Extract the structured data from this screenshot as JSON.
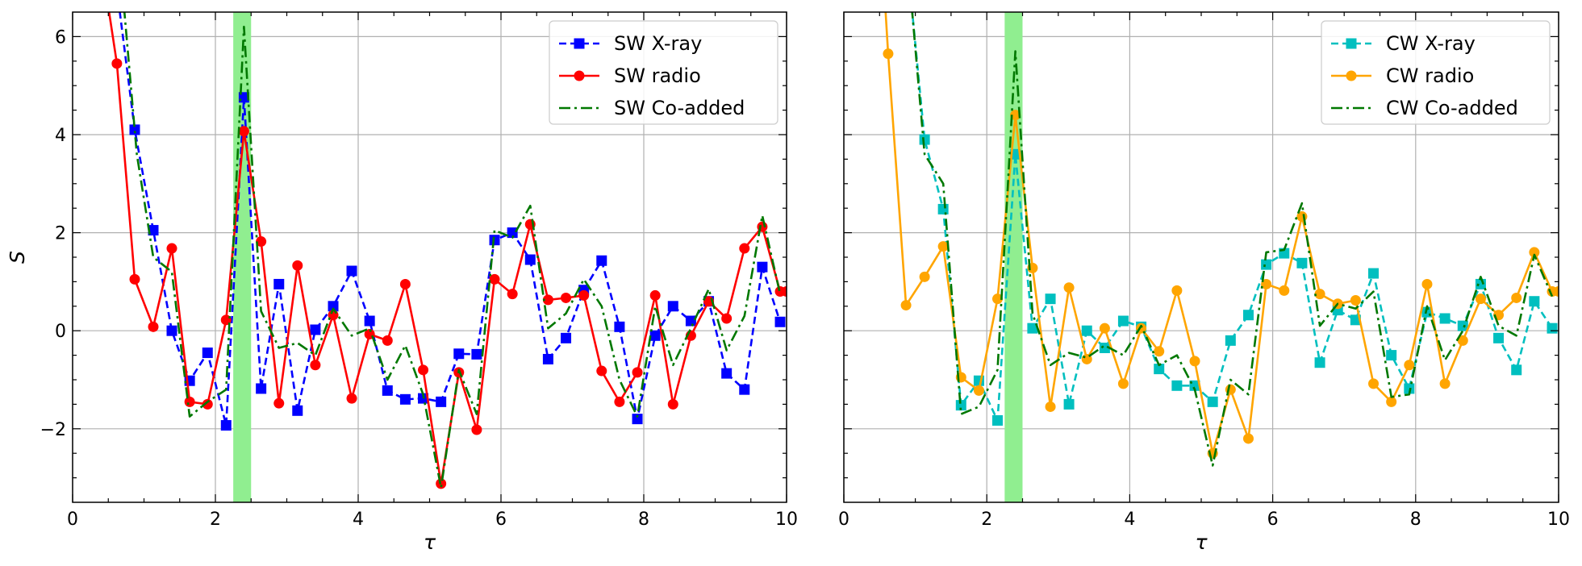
{
  "chart_data": [
    {
      "type": "line",
      "panel": "left",
      "xlabel": "τ",
      "ylabel": "S",
      "xlim": [
        0,
        10
      ],
      "ylim": [
        -3.5,
        6.5
      ],
      "xticks": [
        0,
        2,
        4,
        6,
        8,
        10
      ],
      "yticks": [
        -2,
        0,
        2,
        4,
        6
      ],
      "xtick_labels": [
        "0",
        "2",
        "4",
        "6",
        "8",
        "10"
      ],
      "ytick_labels": [
        "−2",
        "0",
        "2",
        "4",
        "6"
      ],
      "grid": true,
      "legend_position": "top-right",
      "highlight_band": {
        "x0": 2.25,
        "x1": 2.5,
        "color": "#90ee90"
      },
      "series": [
        {
          "name": "SW X-ray",
          "color": "#0000ff",
          "style": "dashed",
          "marker": "square",
          "x": [
            0.6,
            0.87,
            1.13,
            1.39,
            1.64,
            1.89,
            2.15,
            2.4,
            2.64,
            2.89,
            3.15,
            3.4,
            3.65,
            3.91,
            4.16,
            4.41,
            4.66,
            4.91,
            5.16,
            5.41,
            5.66,
            5.91,
            6.16,
            6.41,
            6.66,
            6.91,
            7.16,
            7.41,
            7.66,
            7.91,
            8.16,
            8.41,
            8.66,
            8.91,
            9.16,
            9.41,
            9.66,
            9.91
          ],
          "y": [
            7.2,
            4.1,
            2.05,
            0.0,
            -1.02,
            -0.45,
            -1.93,
            4.76,
            -1.18,
            0.95,
            -1.63,
            0.02,
            0.5,
            1.22,
            0.2,
            -1.22,
            -1.4,
            -1.38,
            -1.45,
            -0.47,
            -0.48,
            1.85,
            2.0,
            1.45,
            -0.58,
            -0.15,
            0.83,
            1.43,
            0.08,
            -1.8,
            -0.1,
            0.5,
            0.2,
            0.6,
            -0.87,
            -1.2,
            1.3,
            0.18
          ]
        },
        {
          "name": "SW radio",
          "color": "#ff0000",
          "style": "solid",
          "marker": "circle",
          "x": [
            0.5,
            0.62,
            0.87,
            1.13,
            1.39,
            1.64,
            1.89,
            2.15,
            2.4,
            2.64,
            2.89,
            3.15,
            3.4,
            3.65,
            3.91,
            4.16,
            4.41,
            4.66,
            4.91,
            5.16,
            5.41,
            5.66,
            5.91,
            6.16,
            6.41,
            6.66,
            6.91,
            7.16,
            7.41,
            7.66,
            7.91,
            8.16,
            8.41,
            8.66,
            8.91,
            9.16,
            9.41,
            9.66,
            9.91,
            10.0
          ],
          "y": [
            6.6,
            5.45,
            1.05,
            0.08,
            1.68,
            -1.45,
            -1.5,
            0.22,
            4.07,
            1.82,
            -1.48,
            1.33,
            -0.7,
            0.32,
            -1.38,
            -0.07,
            -0.2,
            0.95,
            -0.8,
            -3.12,
            -0.85,
            -2.02,
            1.05,
            0.75,
            2.17,
            0.63,
            0.67,
            0.72,
            -0.82,
            -1.45,
            -0.85,
            0.72,
            -1.5,
            -0.1,
            0.6,
            0.25,
            1.68,
            2.12,
            0.8,
            0.8
          ]
        },
        {
          "name": "SW Co-added",
          "color": "#007800",
          "style": "dashdot",
          "marker": "none",
          "x": [
            0.72,
            0.9,
            1.13,
            1.39,
            1.64,
            1.89,
            2.15,
            2.4,
            2.64,
            2.89,
            3.15,
            3.4,
            3.65,
            3.91,
            4.16,
            4.41,
            4.66,
            4.91,
            5.16,
            5.41,
            5.66,
            5.91,
            6.16,
            6.41,
            6.66,
            6.91,
            7.16,
            7.41,
            7.66,
            7.91,
            8.16,
            8.41,
            8.66,
            8.91,
            9.16,
            9.41,
            9.66,
            9.91
          ],
          "y": [
            6.6,
            3.6,
            1.5,
            1.2,
            -1.75,
            -1.45,
            -1.2,
            6.2,
            0.4,
            -0.35,
            -0.25,
            -0.5,
            0.45,
            -0.1,
            0.05,
            -1.0,
            -0.3,
            -1.3,
            -3.2,
            -0.8,
            -1.7,
            2.05,
            1.9,
            2.55,
            0.05,
            0.35,
            1.05,
            0.5,
            -1.0,
            -1.75,
            0.5,
            -0.7,
            0.05,
            0.85,
            -0.4,
            0.3,
            2.35,
            0.75
          ]
        }
      ]
    },
    {
      "type": "line",
      "panel": "right",
      "xlabel": "τ",
      "ylabel": "",
      "xlim": [
        0,
        10
      ],
      "ylim": [
        -3.5,
        6.5
      ],
      "xticks": [
        0,
        2,
        4,
        6,
        8,
        10
      ],
      "yticks": [
        -2,
        0,
        2,
        4,
        6
      ],
      "xtick_labels": [
        "0",
        "2",
        "4",
        "6",
        "8",
        "10"
      ],
      "ytick_labels": [],
      "grid": true,
      "legend_position": "top-right",
      "highlight_band": {
        "x0": 2.25,
        "x1": 2.5,
        "color": "#90ee90"
      },
      "series": [
        {
          "name": "CW X-ray",
          "color": "#00bfbf",
          "style": "dashed",
          "marker": "square",
          "x": [
            0.95,
            1.13,
            1.39,
            1.64,
            1.89,
            2.15,
            2.4,
            2.64,
            2.89,
            3.15,
            3.4,
            3.65,
            3.91,
            4.16,
            4.41,
            4.66,
            4.91,
            5.16,
            5.41,
            5.66,
            5.91,
            6.16,
            6.41,
            6.66,
            6.91,
            7.16,
            7.41,
            7.66,
            7.91,
            8.16,
            8.41,
            8.66,
            8.91,
            9.16,
            9.41,
            9.66,
            9.91
          ],
          "y": [
            6.6,
            3.9,
            2.48,
            -1.52,
            -1.02,
            -1.83,
            3.6,
            0.05,
            0.65,
            -1.5,
            0.0,
            -0.35,
            0.2,
            0.08,
            -0.78,
            -1.12,
            -1.12,
            -1.45,
            -0.2,
            0.32,
            1.35,
            1.58,
            1.38,
            -0.65,
            0.42,
            0.22,
            1.17,
            -0.5,
            -1.18,
            0.38,
            0.25,
            0.1,
            0.95,
            -0.15,
            -0.8,
            0.6,
            0.05
          ]
        },
        {
          "name": "CW radio",
          "color": "#ffa500",
          "style": "solid",
          "marker": "circle",
          "x": [
            0.58,
            0.62,
            0.87,
            1.13,
            1.39,
            1.64,
            1.89,
            2.15,
            2.4,
            2.64,
            2.89,
            3.15,
            3.4,
            3.65,
            3.91,
            4.16,
            4.41,
            4.66,
            4.91,
            5.16,
            5.41,
            5.66,
            5.91,
            6.16,
            6.41,
            6.66,
            6.91,
            7.16,
            7.41,
            7.66,
            7.91,
            8.16,
            8.41,
            8.66,
            8.91,
            9.16,
            9.41,
            9.66,
            9.91,
            10.0
          ],
          "y": [
            6.6,
            5.65,
            0.52,
            1.1,
            1.72,
            -0.95,
            -1.22,
            0.65,
            4.4,
            1.28,
            -1.55,
            0.88,
            -0.58,
            0.05,
            -1.08,
            0.05,
            -0.42,
            0.82,
            -0.62,
            -2.5,
            -1.2,
            -2.2,
            0.95,
            0.82,
            2.33,
            0.75,
            0.55,
            0.62,
            -1.08,
            -1.45,
            -0.7,
            0.95,
            -1.08,
            -0.2,
            0.65,
            0.32,
            0.67,
            1.6,
            0.8,
            0.8
          ]
        },
        {
          "name": "CW Co-added",
          "color": "#007800",
          "style": "dashdot",
          "marker": "none",
          "x": [
            0.95,
            1.13,
            1.39,
            1.64,
            1.89,
            2.15,
            2.4,
            2.64,
            2.89,
            3.15,
            3.4,
            3.65,
            3.91,
            4.16,
            4.41,
            4.66,
            4.91,
            5.16,
            5.41,
            5.66,
            5.91,
            6.16,
            6.41,
            6.66,
            6.91,
            7.16,
            7.41,
            7.66,
            7.91,
            8.16,
            8.41,
            8.66,
            8.91,
            9.16,
            9.41,
            9.66,
            9.91
          ],
          "y": [
            6.6,
            3.6,
            3.0,
            -1.7,
            -1.55,
            -0.8,
            5.7,
            0.35,
            -0.7,
            -0.45,
            -0.55,
            -0.3,
            -0.5,
            0.1,
            -0.7,
            -0.5,
            -1.2,
            -2.75,
            -1.0,
            -1.3,
            1.6,
            1.65,
            2.6,
            0.1,
            0.55,
            0.45,
            0.8,
            -1.35,
            -1.3,
            0.5,
            -0.6,
            0.0,
            1.1,
            0.1,
            -0.1,
            1.55,
            0.7
          ]
        }
      ]
    }
  ]
}
